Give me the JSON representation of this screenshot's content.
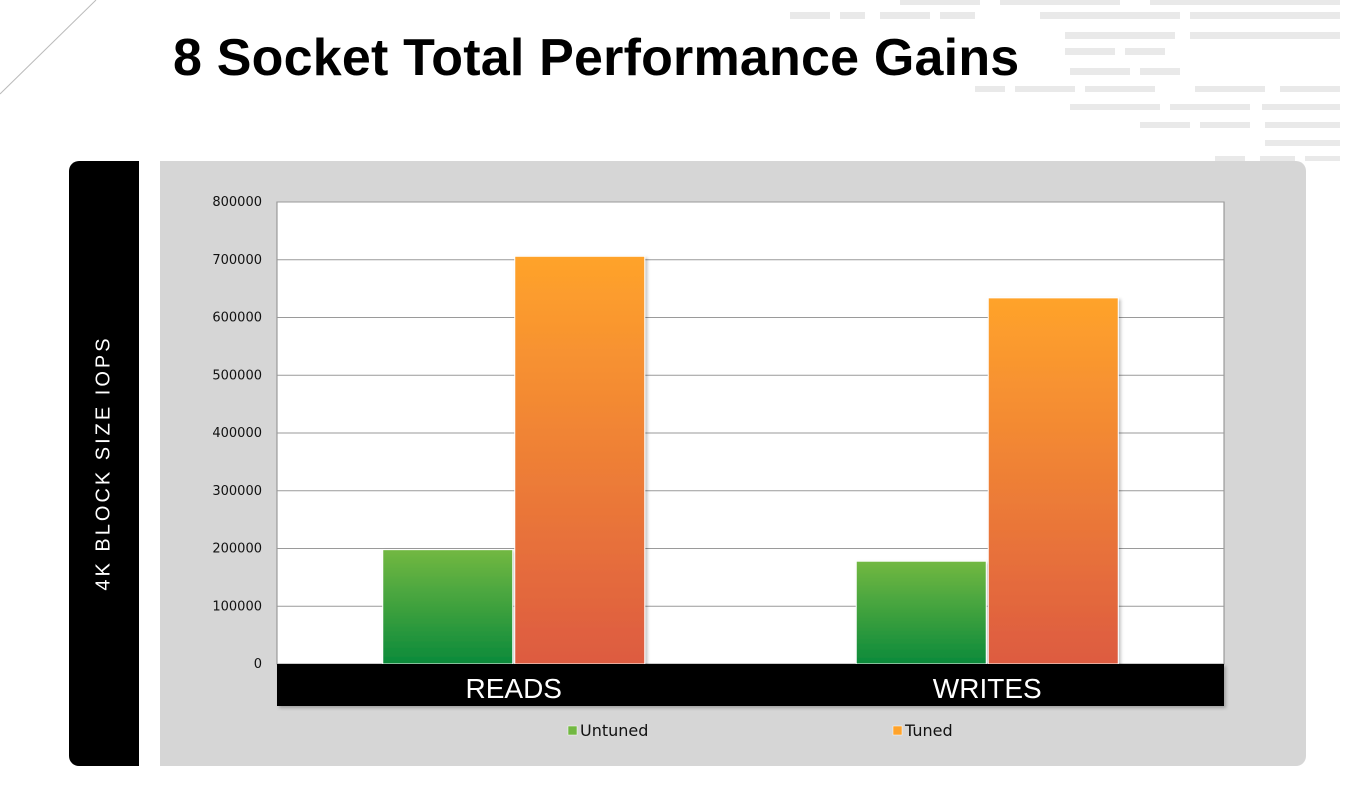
{
  "slide": {
    "title": "8 Socket Total Performance Gains"
  },
  "chart_data": {
    "type": "bar",
    "title": "",
    "ylabel": "4K BLOCK SIZE IOPS",
    "xlabel": "",
    "categories": [
      "READS",
      "WRITES"
    ],
    "series": [
      {
        "name": "Untuned",
        "values": [
          198000,
          178000
        ]
      },
      {
        "name": "Tuned",
        "values": [
          706000,
          634000
        ]
      }
    ],
    "ylim": [
      0,
      800000
    ],
    "yticks": [
      0,
      100000,
      200000,
      300000,
      400000,
      500000,
      600000,
      700000,
      800000
    ],
    "ytick_labels": [
      "0",
      "100000",
      "200000",
      "300000",
      "400000",
      "500000",
      "600000",
      "700000",
      "800000"
    ],
    "grid": true,
    "legend_position": "bottom",
    "colors": {
      "Untuned": {
        "top": "#72b842",
        "bottom": "#0b8a3a"
      },
      "Tuned": {
        "top": "#ffa32b",
        "bottom": "#dd5b41"
      },
      "plot_background": "#ffffff",
      "panel_background": "#d6d6d6",
      "category_band": "#000000"
    }
  }
}
